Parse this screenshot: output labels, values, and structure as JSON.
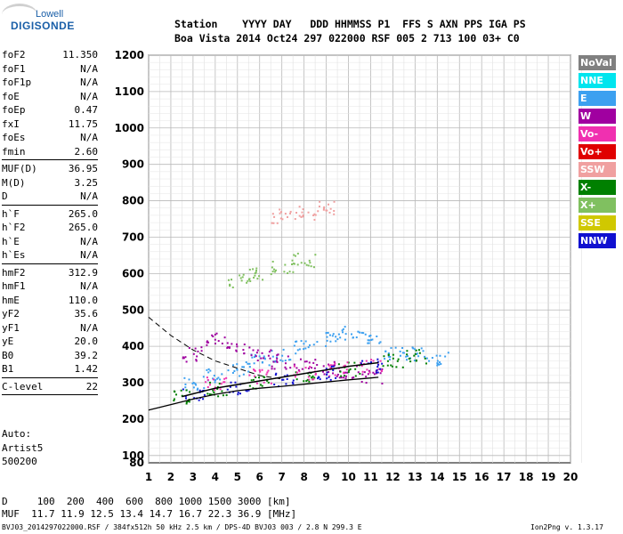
{
  "logo": {
    "top": "Lowell",
    "main": "DIGISONDE"
  },
  "header": {
    "line1": "Station    YYYY DAY   DDD HHMMSS P1  FFS S AXN PPS IGA PS",
    "line2": "Boa Vista 2014 Oct24 297 022000 RSF 005 2 713 100 03+ C0"
  },
  "params": [
    {
      "k": "foF2",
      "v": "11.350"
    },
    {
      "k": "foF1",
      "v": "N/A"
    },
    {
      "k": "foF1p",
      "v": "N/A"
    },
    {
      "k": "foE",
      "v": "N/A"
    },
    {
      "k": "foEp",
      "v": "0.47"
    },
    {
      "k": "fxI",
      "v": "11.75"
    },
    {
      "k": "foEs",
      "v": "N/A"
    },
    {
      "k": "fmin",
      "v": "2.60"
    },
    {
      "sep": true
    },
    {
      "k": "MUF(D)",
      "v": "36.95"
    },
    {
      "k": "M(D)",
      "v": "3.25"
    },
    {
      "k": "D",
      "v": "N/A"
    },
    {
      "sep": true
    },
    {
      "k": "h`F",
      "v": "265.0"
    },
    {
      "k": "h`F2",
      "v": "265.0"
    },
    {
      "k": "h`E",
      "v": "N/A"
    },
    {
      "k": "h`Es",
      "v": "N/A"
    },
    {
      "sep": true
    },
    {
      "k": "hmF2",
      "v": "312.9"
    },
    {
      "k": "hmF1",
      "v": "N/A"
    },
    {
      "k": "hmE",
      "v": "110.0"
    },
    {
      "k": "yF2",
      "v": "35.6"
    },
    {
      "k": "yF1",
      "v": "N/A"
    },
    {
      "k": "yE",
      "v": "20.0"
    },
    {
      "k": "B0",
      "v": "39.2"
    },
    {
      "k": "B1",
      "v": "1.42"
    },
    {
      "sep": true
    },
    {
      "k": "C-level",
      "v": "22"
    },
    {
      "sep": true
    }
  ],
  "auto": [
    "Auto:",
    "Artist5",
    "500200"
  ],
  "footer": {
    "d_row": "D     100  200  400  600  800 1000 1500 3000 [km]",
    "muf_row": "MUF  11.7 11.9 12.5 13.4 14.7 16.7 22.3 36.9 [MHz]",
    "file_row": "BVJ03_2014297022000.RSF / 384fx512h 50 kHz 2.5 km / DPS-4D BVJ03 003 / 2.8 N 299.3 E",
    "version": "Ion2Png v. 1.3.17"
  },
  "legend": [
    {
      "label": "NoVal",
      "bg": "#808080",
      "fg": "#ffffff"
    },
    {
      "label": "NNE",
      "bg": "#00e5ee",
      "fg": "#ffffff"
    },
    {
      "label": "E",
      "bg": "#3ca0f0",
      "fg": "#ffffff"
    },
    {
      "label": "W",
      "bg": "#a000a0",
      "fg": "#ffffff"
    },
    {
      "label": "Vo-",
      "bg": "#f030b0",
      "fg": "#ffffff"
    },
    {
      "label": "Vo+",
      "bg": "#e00000",
      "fg": "#ffffff"
    },
    {
      "label": "SSW",
      "bg": "#f0a0a0",
      "fg": "#ffffff"
    },
    {
      "label": "X-",
      "bg": "#008000",
      "fg": "#ffffff"
    },
    {
      "label": "X+",
      "bg": "#80c060",
      "fg": "#ffffff"
    },
    {
      "label": "SSE",
      "bg": "#d0c800",
      "fg": "#ffffff"
    },
    {
      "label": "NNW",
      "bg": "#1010d0",
      "fg": "#ffffff"
    }
  ],
  "chart_data": {
    "type": "scatter",
    "xlim": [
      1,
      20
    ],
    "ylim": [
      80,
      1200
    ],
    "x_ticks": [
      1,
      2,
      3,
      4,
      5,
      6,
      7,
      8,
      9,
      10,
      11,
      12,
      13,
      14,
      15,
      16,
      17,
      18,
      19,
      20
    ],
    "y_ticks": [
      80,
      100,
      200,
      300,
      400,
      500,
      600,
      700,
      800,
      900,
      1000,
      1100,
      1200
    ],
    "grid": true,
    "series": [
      {
        "name": "E",
        "color": "#3ca0f0",
        "x": [
          3.0,
          4.0,
          5.0,
          6.0,
          7.0,
          8.0,
          9.0,
          10.0,
          11.0,
          12.0,
          13.0,
          14.0
        ],
        "y": [
          300,
          320,
          340,
          360,
          380,
          400,
          420,
          440,
          430,
          380,
          380,
          370
        ]
      },
      {
        "name": "W",
        "color": "#a000a0",
        "x": [
          3.0,
          4.0,
          5.0,
          6.0,
          7.0,
          8.0,
          9.0,
          10.0,
          11.0
        ],
        "y": [
          380,
          420,
          400,
          380,
          360,
          350,
          340,
          330,
          320
        ]
      },
      {
        "name": "X-",
        "color": "#008000",
        "x": [
          2.5,
          4.0,
          6.0,
          8.0,
          10.0,
          12.0,
          13.0
        ],
        "y": [
          265,
          285,
          300,
          320,
          340,
          360,
          375
        ]
      },
      {
        "name": "Vo-",
        "color": "#f030b0",
        "x": [
          4.0,
          6.0,
          8.0,
          9.5,
          11.0
        ],
        "y": [
          300,
          320,
          330,
          340,
          350
        ]
      },
      {
        "name": "NNW",
        "color": "#1010d0",
        "x": [
          3.0,
          5.0,
          7.0,
          9.0,
          11.0
        ],
        "y": [
          270,
          290,
          310,
          330,
          350
        ]
      },
      {
        "name": "X+",
        "color": "#80c060",
        "x": [
          5.0,
          6.0,
          7.0,
          8.0
        ],
        "y": [
          580,
          600,
          620,
          640
        ]
      },
      {
        "name": "SSW",
        "color": "#f0a0a0",
        "x": [
          7.0,
          8.0,
          9.0
        ],
        "y": [
          760,
          770,
          780
        ]
      }
    ],
    "profile_curve": {
      "x": [
        1.0,
        2.0,
        3.0,
        4.0,
        5.0,
        6.0,
        7.0,
        8.0,
        9.0,
        10.0,
        11.0,
        11.35
      ],
      "y": [
        225,
        240,
        255,
        268,
        278,
        285,
        290,
        296,
        302,
        308,
        313,
        315
      ]
    },
    "trace_curve": {
      "x": [
        2.5,
        4.0,
        6.0,
        8.0,
        10.0,
        11.35
      ],
      "y": [
        262,
        285,
        305,
        325,
        345,
        355
      ]
    },
    "dashed_curve": {
      "x": [
        1.0,
        2.0,
        3.0,
        4.0,
        5.0,
        6.0,
        7.0
      ],
      "y": [
        480,
        430,
        390,
        360,
        340,
        320,
        310
      ]
    }
  }
}
